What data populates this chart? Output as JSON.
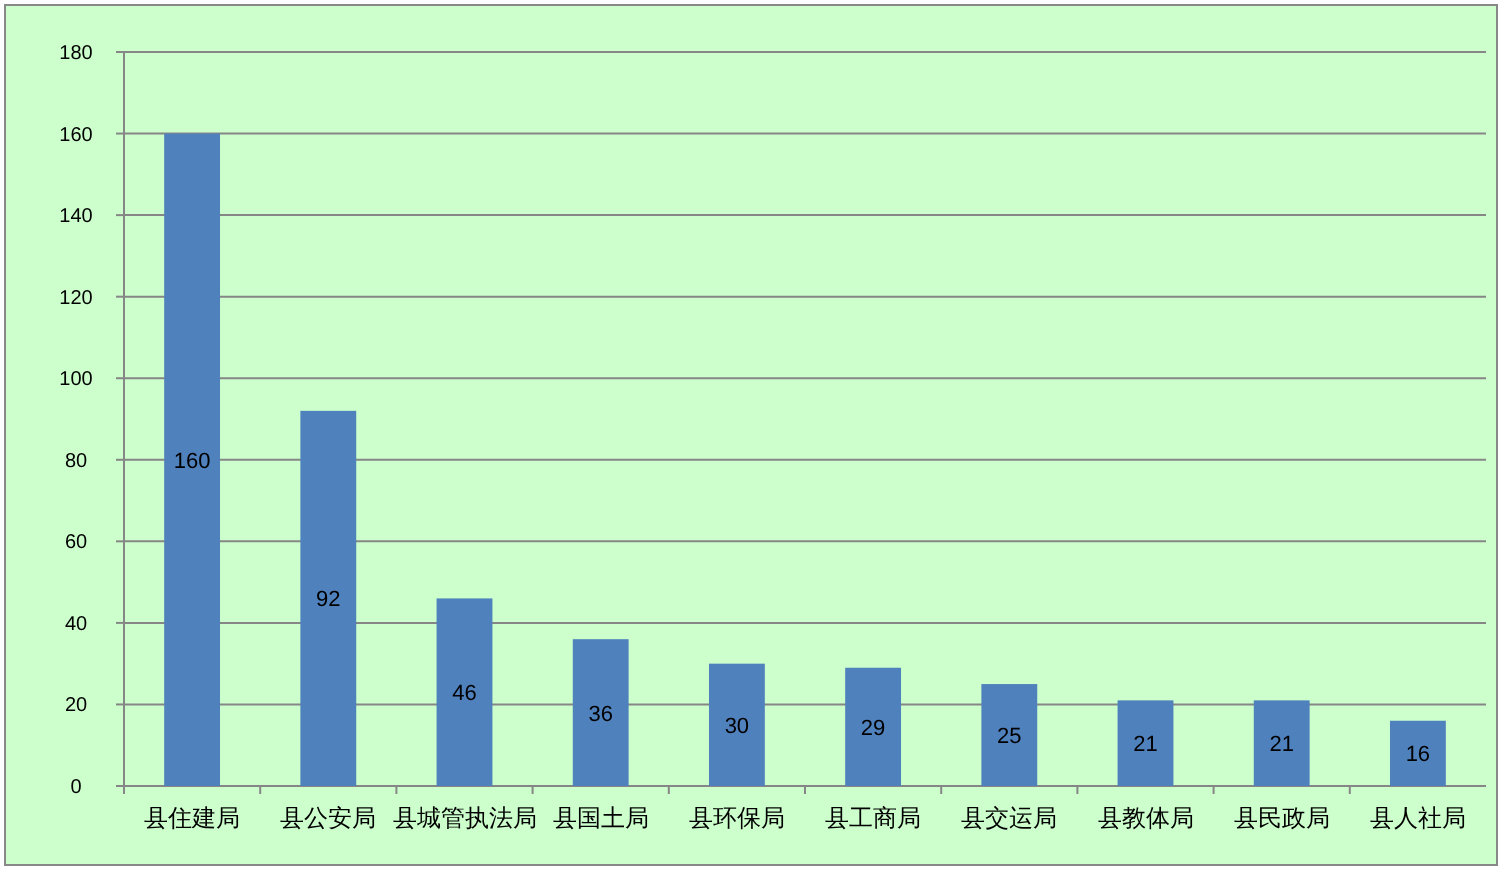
{
  "chart_data": {
    "type": "bar",
    "categories": [
      "县住建局",
      "县公安局",
      "县城管执法局",
      "县国土局",
      "县环保局",
      "县工商局",
      "县交运局",
      "县教体局",
      "县民政局",
      "县人社局"
    ],
    "values": [
      160,
      92,
      46,
      36,
      30,
      29,
      25,
      21,
      21,
      16
    ],
    "color": "#4f81bd",
    "ylim": [
      0,
      180
    ],
    "yticks": [
      0,
      20,
      40,
      60,
      80,
      100,
      120,
      140,
      160,
      180
    ],
    "grid": "y",
    "data_labels": true
  }
}
